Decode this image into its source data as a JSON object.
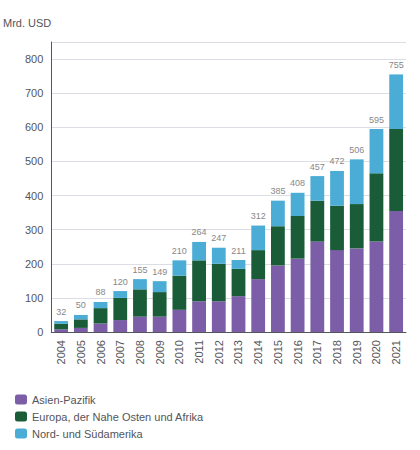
{
  "chart_data": {
    "type": "bar",
    "stacked": true,
    "y_label": "Mrd. USD",
    "categories": [
      "2004",
      "2005",
      "2006",
      "2007",
      "2008",
      "2009",
      "2010",
      "2011",
      "2012",
      "2013",
      "2014",
      "2015",
      "2016",
      "2017",
      "2018",
      "2019",
      "2020",
      "2021"
    ],
    "series": [
      {
        "name": "Asien-Pazifik",
        "color": "#7b5ea7",
        "values": [
          8,
          12,
          25,
          35,
          45,
          45,
          65,
          90,
          90,
          105,
          155,
          195,
          215,
          265,
          240,
          245,
          265,
          355
        ]
      },
      {
        "name": "Europa, der Nahe Osten und Afrika",
        "color": "#1a5c38",
        "values": [
          16,
          25,
          45,
          65,
          80,
          72,
          100,
          120,
          110,
          80,
          85,
          115,
          125,
          120,
          130,
          130,
          200,
          240
        ]
      },
      {
        "name": "Nord- und Südamerika",
        "color": "#4bacd6",
        "values": [
          8,
          13,
          18,
          20,
          30,
          32,
          45,
          54,
          47,
          26,
          72,
          75,
          68,
          72,
          102,
          131,
          130,
          160
        ]
      }
    ],
    "totals": [
      32,
      50,
      88,
      120,
      155,
      149,
      210,
      264,
      247,
      211,
      312,
      385,
      408,
      457,
      472,
      506,
      595,
      755
    ],
    "ylim": [
      0,
      850
    ],
    "yticks": [
      0,
      100,
      200,
      300,
      400,
      500,
      600,
      700,
      800
    ],
    "grid": true,
    "legend": "bottom"
  }
}
